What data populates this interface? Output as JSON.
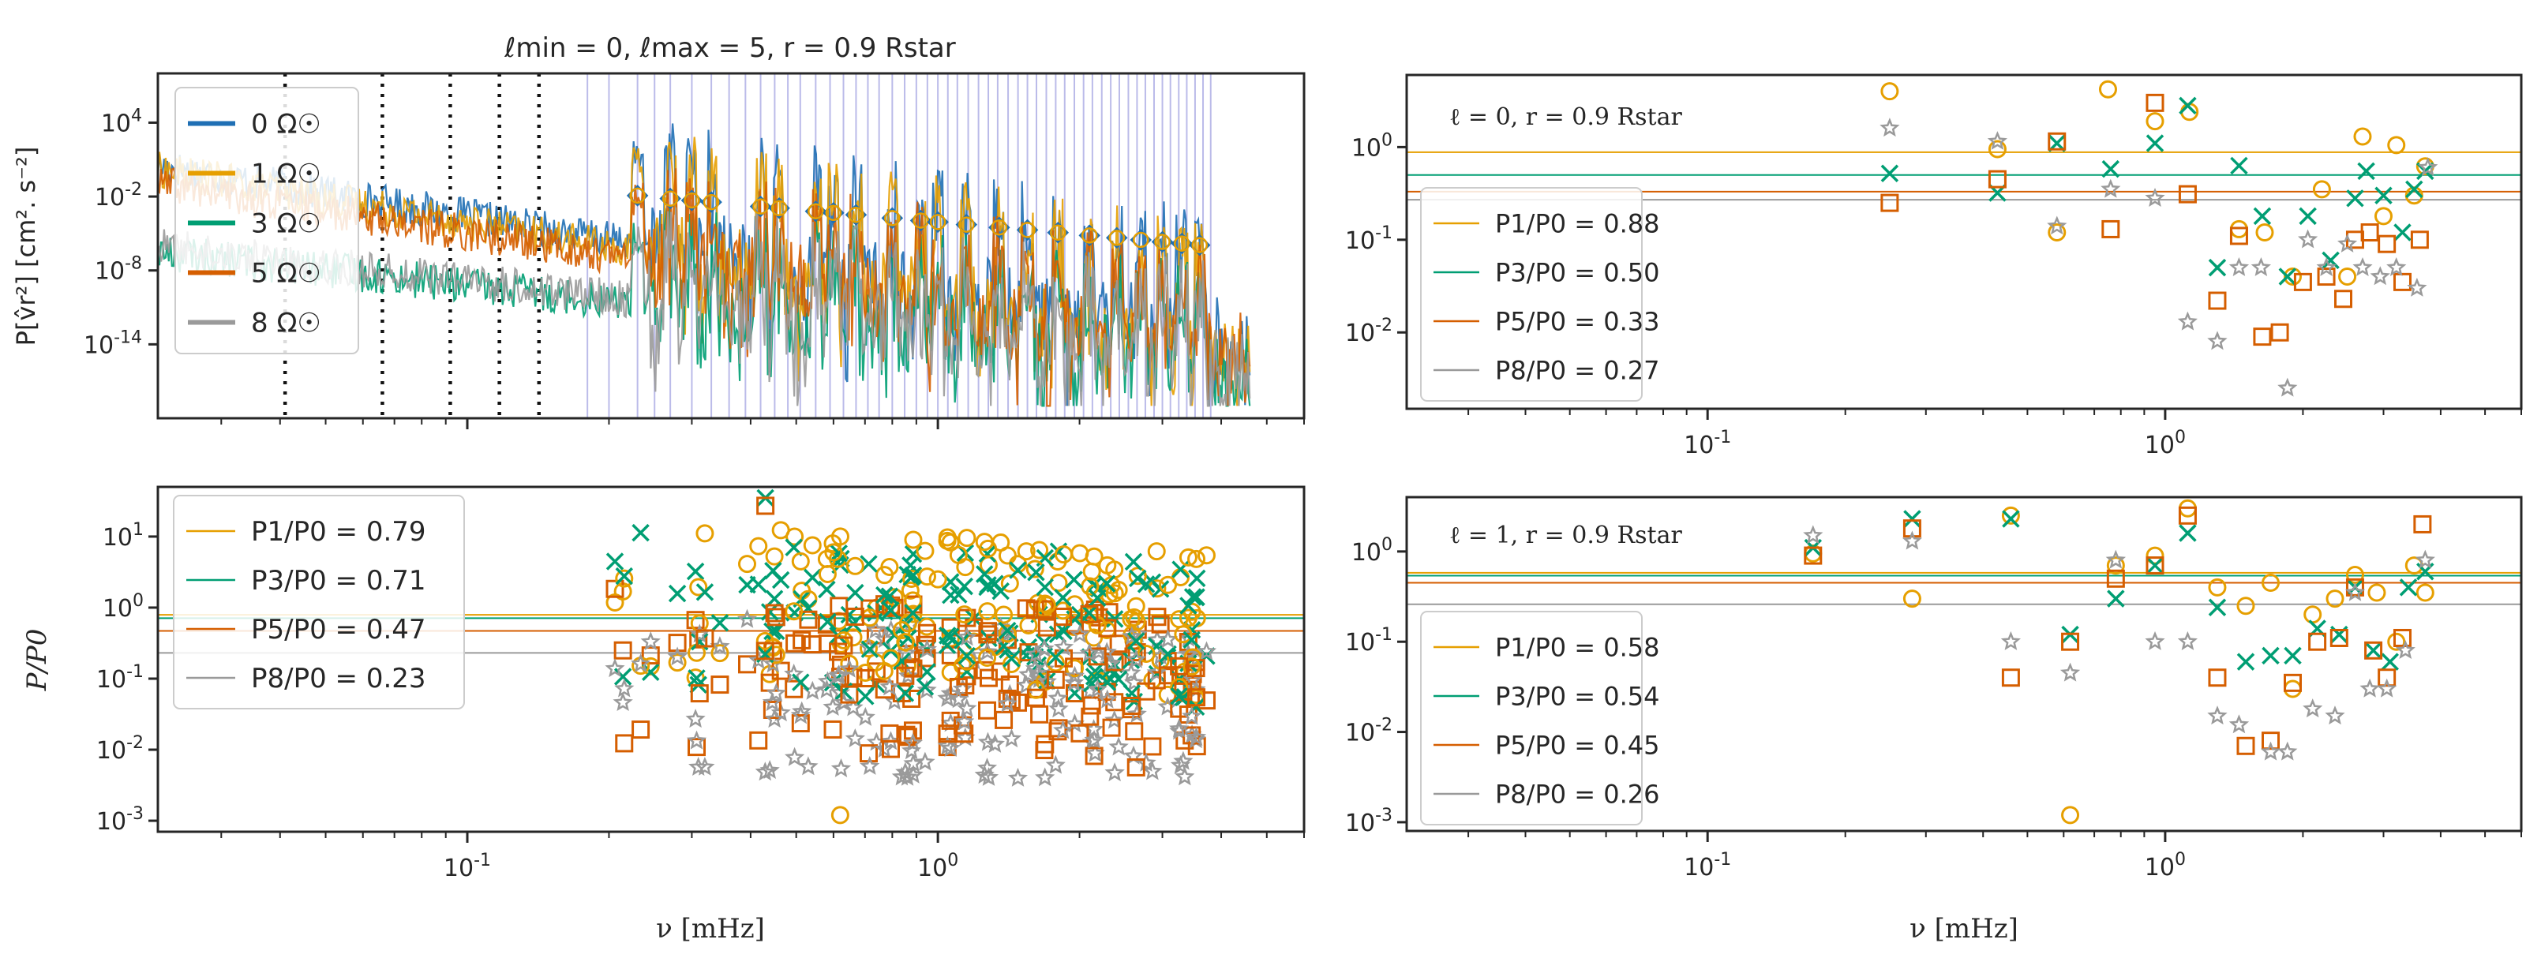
{
  "colors": {
    "0": "#1f6fb4",
    "1": "#e69f00",
    "3": "#009e73",
    "5": "#d55e00",
    "8": "#9a9a9a",
    "mode_lines": "#3b3bbf"
  },
  "figure_title": "ℓmin = 0, ℓmax = 5, r = 0.9 Rstar",
  "chart_data": [
    {
      "id": "psd",
      "type": "line",
      "title": "ℓmin = 0, ℓmax = 5, r = 0.9 Rstar",
      "xlabel": "",
      "ylabel": "P[v̂r²] [cm². s⁻²]",
      "xscale": "log",
      "yscale": "log",
      "xlim": [
        0.022,
        6.0
      ],
      "ylim_exp": [
        -20,
        8
      ],
      "y_tick_labels": [
        "10^4",
        "10^-2",
        "10^-8",
        "10^-14"
      ],
      "y_tick_exponents": [
        4,
        -2,
        -8,
        -14
      ],
      "x_ticks": [
        0.1,
        1
      ],
      "x_tick_labels": [
        "",
        ""
      ],
      "vertical_dotted_lines_mHz": [
        0.041,
        0.066,
        0.092,
        0.117,
        0.142
      ],
      "mode_frequency_lines_mHz": [
        0.18,
        0.2,
        0.23,
        0.25,
        0.27,
        0.3,
        0.33,
        0.36,
        0.39,
        0.42,
        0.45,
        0.48,
        0.51,
        0.55,
        0.59,
        0.63,
        0.67,
        0.71,
        0.75,
        0.8,
        0.85,
        0.9,
        0.95,
        1.0,
        1.05,
        1.1,
        1.16,
        1.22,
        1.28,
        1.34,
        1.41,
        1.48,
        1.55,
        1.62,
        1.7,
        1.78,
        1.86,
        1.95,
        2.04,
        2.13,
        2.23,
        2.33,
        2.43,
        2.54,
        2.65,
        2.76,
        2.88,
        3.0,
        3.12,
        3.25,
        3.38,
        3.52,
        3.66,
        3.8
      ],
      "series": [
        {
          "name": "0 Ω☉",
          "rotation": "0",
          "trend_start_exp": 0.5,
          "trend_end_exp": -14
        },
        {
          "name": "1 Ω☉",
          "rotation": "1",
          "trend_start_exp": 0.2,
          "trend_end_exp": -15
        },
        {
          "name": "3 Ω☉",
          "rotation": "3",
          "trend_start_exp": -6.5,
          "trend_end_exp": -16
        },
        {
          "name": "5 Ω☉",
          "rotation": "5",
          "trend_start_exp": -1.0,
          "trend_end_exp": -15
        },
        {
          "name": "8 Ω☉",
          "rotation": "8",
          "trend_start_exp": -6.0,
          "trend_end_exp": -16
        }
      ],
      "peak_markers_mHz": [
        0.23,
        0.27,
        0.3,
        0.33,
        0.42,
        0.46,
        0.55,
        0.6,
        0.67,
        0.8,
        0.92,
        1.0,
        1.15,
        1.35,
        1.55,
        1.8,
        2.1,
        2.4,
        2.7,
        3.0,
        3.3,
        3.6
      ],
      "legend": [
        "0 Ω☉",
        "1 Ω☉",
        "3 Ω☉",
        "5 Ω☉",
        "8 Ω☉"
      ],
      "legend_position": "upper-left"
    },
    {
      "id": "l0",
      "type": "scatter",
      "annotation": "ℓ = 0, r = 0.9 Rstar",
      "xscale": "log",
      "yscale": "log",
      "xlim": [
        0.022,
        6.0
      ],
      "ylim": [
        0.0015,
        6
      ],
      "x_ticks": [
        0.1,
        1
      ],
      "x_tick_labels": [
        "10^-1",
        "10^0"
      ],
      "y_tick_labels": [
        "10^0",
        "10^-1",
        "10^-2"
      ],
      "hlines": [
        {
          "rotation": "1",
          "value": 0.88
        },
        {
          "rotation": "3",
          "value": 0.5
        },
        {
          "rotation": "5",
          "value": 0.33
        },
        {
          "rotation": "8",
          "value": 0.27
        }
      ],
      "legend": [
        "P1/P0 = 0.88",
        "P3/P0 = 0.50",
        "P5/P0 = 0.33",
        "P8/P0 = 0.27"
      ],
      "legend_position": "center-left",
      "series": [
        {
          "rotation": "1",
          "marker": "circle",
          "points": [
            [
              0.25,
              4.0
            ],
            [
              0.43,
              0.95
            ],
            [
              0.58,
              0.12
            ],
            [
              0.75,
              4.2
            ],
            [
              0.95,
              1.9
            ],
            [
              1.13,
              2.4
            ],
            [
              1.45,
              0.13
            ],
            [
              1.65,
              0.12
            ],
            [
              1.9,
              0.04
            ],
            [
              2.2,
              0.35
            ],
            [
              2.5,
              0.04
            ],
            [
              2.7,
              1.3
            ],
            [
              3.0,
              0.18
            ],
            [
              3.2,
              1.05
            ],
            [
              3.5,
              0.3
            ],
            [
              3.7,
              0.62
            ]
          ]
        },
        {
          "rotation": "3",
          "marker": "x",
          "points": [
            [
              0.25,
              0.52
            ],
            [
              0.43,
              0.32
            ],
            [
              0.58,
              1.1
            ],
            [
              0.76,
              0.58
            ],
            [
              0.95,
              1.1
            ],
            [
              1.12,
              2.8
            ],
            [
              1.3,
              0.05
            ],
            [
              1.45,
              0.63
            ],
            [
              1.63,
              0.18
            ],
            [
              1.85,
              0.04
            ],
            [
              2.05,
              0.18
            ],
            [
              2.3,
              0.06
            ],
            [
              2.6,
              0.28
            ],
            [
              2.75,
              0.55
            ],
            [
              3.0,
              0.3
            ],
            [
              3.3,
              0.12
            ],
            [
              3.5,
              0.35
            ],
            [
              3.7,
              0.55
            ]
          ]
        },
        {
          "rotation": "5",
          "marker": "square",
          "points": [
            [
              0.25,
              0.25
            ],
            [
              0.43,
              0.45
            ],
            [
              0.58,
              1.15
            ],
            [
              0.76,
              0.13
            ],
            [
              0.95,
              3.0
            ],
            [
              1.12,
              0.31
            ],
            [
              1.3,
              0.022
            ],
            [
              1.45,
              0.11
            ],
            [
              1.63,
              0.009
            ],
            [
              1.78,
              0.01
            ],
            [
              2.0,
              0.035
            ],
            [
              2.25,
              0.04
            ],
            [
              2.45,
              0.023
            ],
            [
              2.6,
              0.1
            ],
            [
              2.8,
              0.12
            ],
            [
              3.05,
              0.09
            ],
            [
              3.3,
              0.035
            ],
            [
              3.6,
              0.1
            ]
          ]
        },
        {
          "rotation": "8",
          "marker": "star",
          "points": [
            [
              0.25,
              1.6
            ],
            [
              0.43,
              1.15
            ],
            [
              0.58,
              0.14
            ],
            [
              0.76,
              0.35
            ],
            [
              0.95,
              0.28
            ],
            [
              1.12,
              0.013
            ],
            [
              1.3,
              0.008
            ],
            [
              1.45,
              0.05
            ],
            [
              1.62,
              0.05
            ],
            [
              1.85,
              0.0025
            ],
            [
              2.05,
              0.1
            ],
            [
              2.25,
              0.05
            ],
            [
              2.5,
              0.09
            ],
            [
              2.7,
              0.05
            ],
            [
              2.95,
              0.04
            ],
            [
              3.2,
              0.05
            ],
            [
              3.55,
              0.03
            ],
            [
              3.75,
              0.6
            ]
          ]
        }
      ]
    },
    {
      "id": "ratio_all",
      "type": "scatter",
      "xlabel": "ν [mHz]",
      "ylabel": "P/P0",
      "xscale": "log",
      "yscale": "log",
      "xlim": [
        0.022,
        6.0
      ],
      "ylim": [
        0.0007,
        50
      ],
      "x_ticks": [
        0.1,
        1
      ],
      "x_tick_labels": [
        "10^-1",
        "10^0"
      ],
      "y_tick_exponents": [
        1,
        0,
        -1,
        -2,
        -3
      ],
      "y_tick_labels": [
        "10^1",
        "10^0",
        "10^-1",
        "10^-2",
        "10^-3"
      ],
      "hlines": [
        {
          "rotation": "1",
          "value": 0.79
        },
        {
          "rotation": "3",
          "value": 0.71
        },
        {
          "rotation": "5",
          "value": 0.47
        },
        {
          "rotation": "8",
          "value": 0.23
        }
      ],
      "legend": [
        "P1/P0 = 0.79",
        "P3/P0 = 0.71",
        "P5/P0 = 0.47",
        "P8/P0 = 0.23"
      ],
      "legend_position": "upper-left",
      "scatter_range_mHz": [
        0.17,
        3.8
      ],
      "scatter_highlights": [
        [
          0.43,
          35
        ],
        [
          0.62,
          0.0012
        ],
        [
          0.6,
          6
        ],
        [
          1.0,
          2.5
        ]
      ]
    },
    {
      "id": "l1",
      "type": "scatter",
      "annotation": "ℓ = 1, r = 0.9 Rstar",
      "xlabel": "ν [mHz]",
      "xscale": "log",
      "yscale": "log",
      "xlim": [
        0.022,
        6.0
      ],
      "ylim": [
        0.0008,
        4
      ],
      "x_ticks": [
        0.1,
        1
      ],
      "x_tick_labels": [
        "10^-1",
        "10^0"
      ],
      "y_tick_labels": [
        "10^0",
        "10^-1",
        "10^-2",
        "10^-3"
      ],
      "hlines": [
        {
          "rotation": "1",
          "value": 0.58
        },
        {
          "rotation": "3",
          "value": 0.54
        },
        {
          "rotation": "5",
          "value": 0.45
        },
        {
          "rotation": "8",
          "value": 0.26
        }
      ],
      "legend": [
        "P1/P0 = 0.58",
        "P3/P0 = 0.54",
        "P5/P0 = 0.45",
        "P8/P0 = 0.26"
      ],
      "legend_position": "center-left",
      "series": [
        {
          "rotation": "1",
          "marker": "circle",
          "points": [
            [
              0.17,
              0.95
            ],
            [
              0.28,
              0.3
            ],
            [
              0.46,
              2.5
            ],
            [
              0.62,
              0.0012
            ],
            [
              0.78,
              0.7
            ],
            [
              0.95,
              0.9
            ],
            [
              1.12,
              3.0
            ],
            [
              1.3,
              0.4
            ],
            [
              1.5,
              0.25
            ],
            [
              1.7,
              0.45
            ],
            [
              1.9,
              0.03
            ],
            [
              2.1,
              0.2
            ],
            [
              2.35,
              0.3
            ],
            [
              2.6,
              0.55
            ],
            [
              2.9,
              0.35
            ],
            [
              3.2,
              0.1
            ],
            [
              3.5,
              0.7
            ],
            [
              3.7,
              0.35
            ]
          ]
        },
        {
          "rotation": "3",
          "marker": "x",
          "points": [
            [
              0.17,
              1.1
            ],
            [
              0.28,
              2.3
            ],
            [
              0.46,
              2.3
            ],
            [
              0.62,
              0.12
            ],
            [
              0.78,
              0.3
            ],
            [
              0.95,
              0.7
            ],
            [
              1.12,
              1.6
            ],
            [
              1.3,
              0.24
            ],
            [
              1.5,
              0.06
            ],
            [
              1.7,
              0.07
            ],
            [
              1.9,
              0.07
            ],
            [
              2.15,
              0.14
            ],
            [
              2.4,
              0.12
            ],
            [
              2.6,
              0.4
            ],
            [
              2.85,
              0.08
            ],
            [
              3.1,
              0.06
            ],
            [
              3.4,
              0.4
            ],
            [
              3.7,
              0.6
            ]
          ]
        },
        {
          "rotation": "5",
          "marker": "square",
          "points": [
            [
              0.17,
              0.9
            ],
            [
              0.28,
              1.8
            ],
            [
              0.46,
              0.04
            ],
            [
              0.62,
              0.1
            ],
            [
              0.78,
              0.5
            ],
            [
              0.95,
              0.7
            ],
            [
              1.12,
              2.5
            ],
            [
              1.3,
              0.04
            ],
            [
              1.5,
              0.007
            ],
            [
              1.7,
              0.008
            ],
            [
              1.9,
              0.035
            ],
            [
              2.15,
              0.1
            ],
            [
              2.4,
              0.11
            ],
            [
              2.6,
              0.4
            ],
            [
              2.85,
              0.08
            ],
            [
              3.05,
              0.04
            ],
            [
              3.3,
              0.11
            ],
            [
              3.65,
              2.0
            ]
          ]
        },
        {
          "rotation": "8",
          "marker": "star",
          "points": [
            [
              0.17,
              1.5
            ],
            [
              0.28,
              1.3
            ],
            [
              0.46,
              0.1
            ],
            [
              0.62,
              0.045
            ],
            [
              0.78,
              0.8
            ],
            [
              0.95,
              0.1
            ],
            [
              1.12,
              0.1
            ],
            [
              1.3,
              0.015
            ],
            [
              1.45,
              0.012
            ],
            [
              1.7,
              0.006
            ],
            [
              1.85,
              0.006
            ],
            [
              2.1,
              0.018
            ],
            [
              2.35,
              0.015
            ],
            [
              2.6,
              0.35
            ],
            [
              2.8,
              0.03
            ],
            [
              3.05,
              0.03
            ],
            [
              3.35,
              0.08
            ],
            [
              3.7,
              0.8
            ]
          ]
        }
      ]
    }
  ]
}
